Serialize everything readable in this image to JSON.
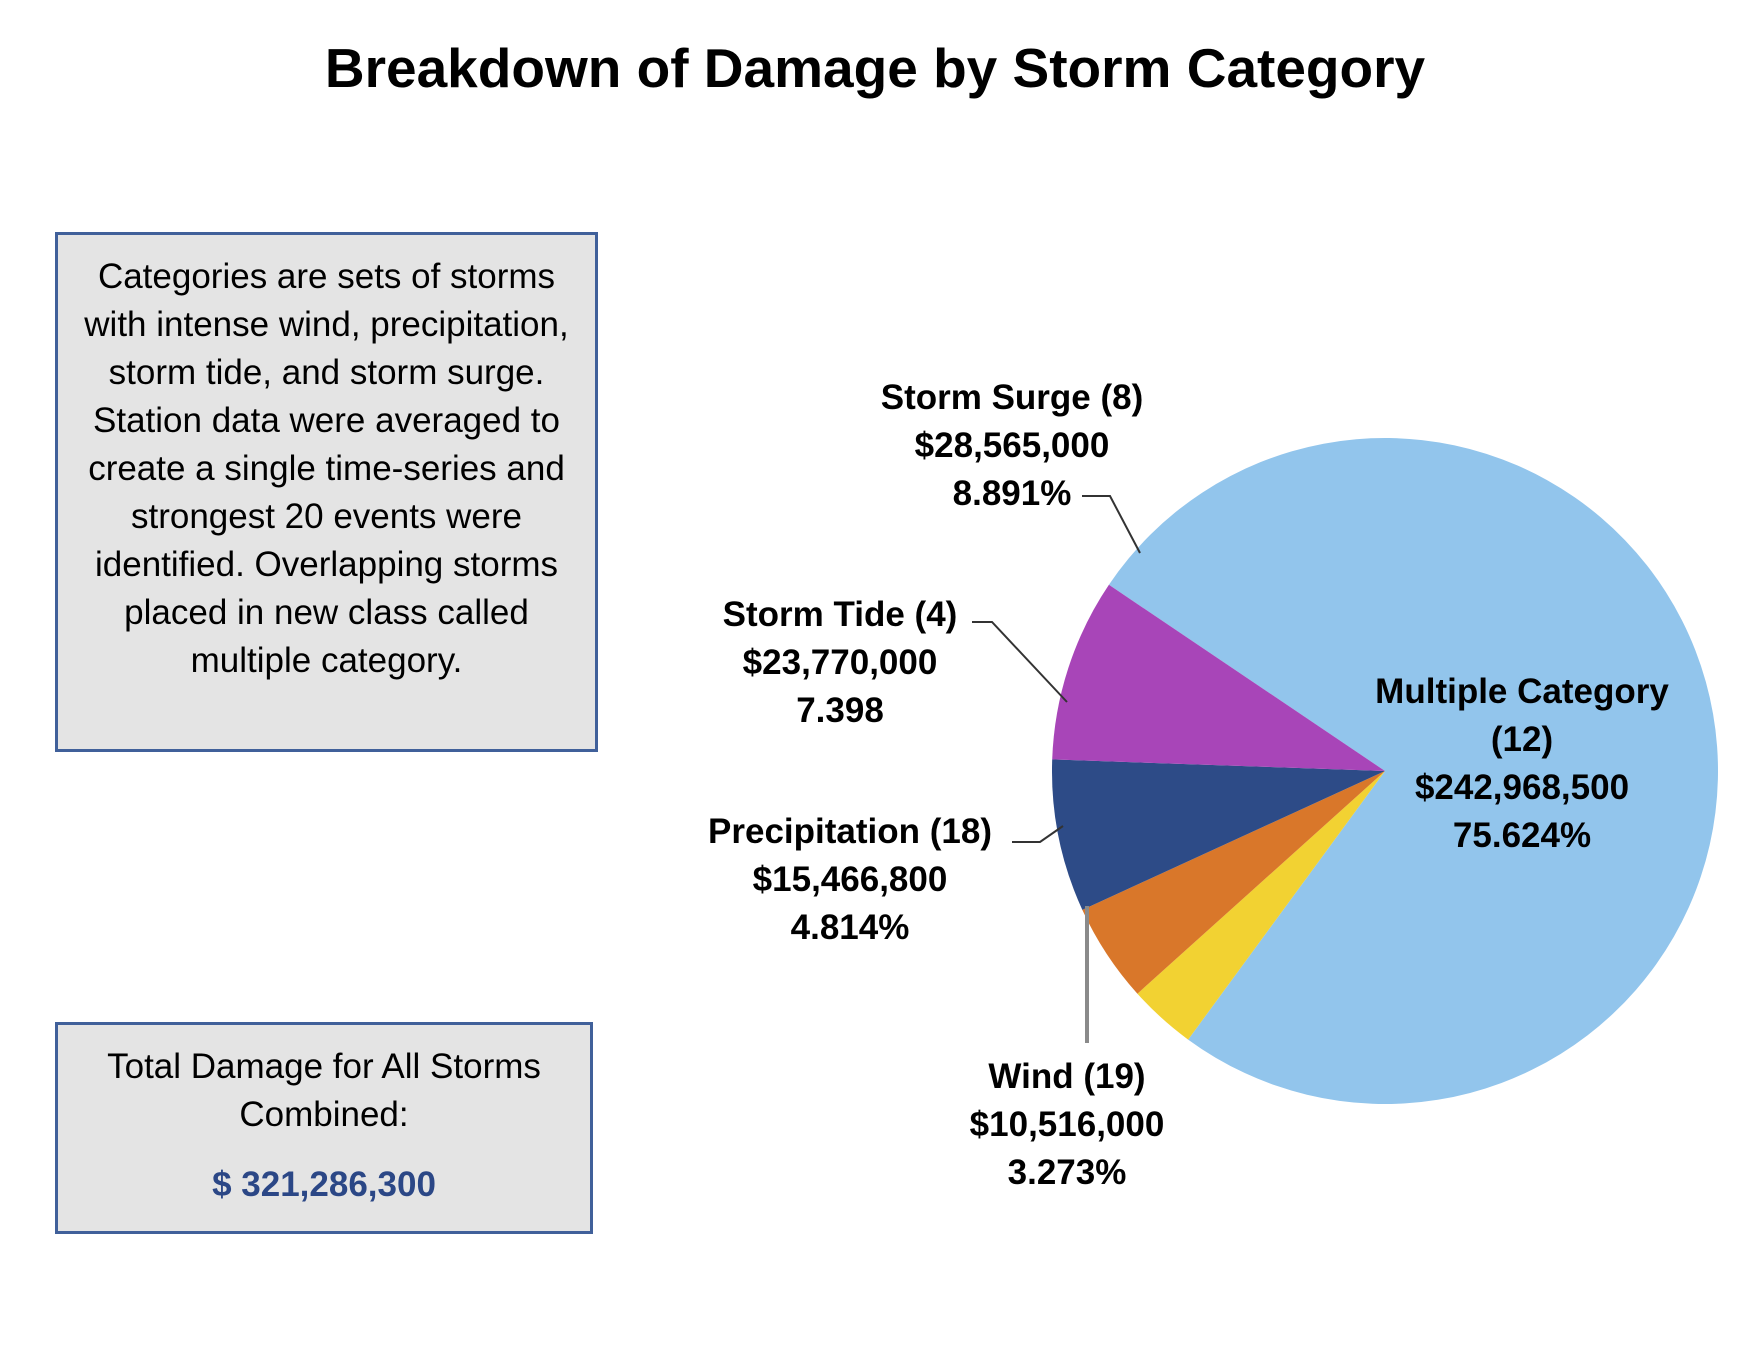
{
  "chart_data": {
    "type": "pie",
    "title": "Breakdown of Damage by Storm Category",
    "slices": [
      {
        "label": "Multiple Category",
        "count": "(12)",
        "value": 242968500,
        "value_text": "$242,968,500",
        "percent": 75.624,
        "percent_text": "75.624%",
        "color": "#92c5ec"
      },
      {
        "label": "Wind",
        "count": "(19)",
        "value": 10516000,
        "value_text": "$10,516,000",
        "percent": 3.273,
        "percent_text": "3.273%",
        "color": "#f2d232"
      },
      {
        "label": "Precipitation",
        "count": "(18)",
        "value": 15466800,
        "value_text": "$15,466,800",
        "percent": 4.814,
        "percent_text": "4.814%",
        "color": "#d9772a"
      },
      {
        "label": "Storm Tide",
        "count": "(4)",
        "value": 23770000,
        "value_text": "$23,770,000",
        "percent": 7.398,
        "percent_text": "7.398",
        "color": "#2d4b87"
      },
      {
        "label": "Storm Surge",
        "count": "(8)",
        "value": 28565000,
        "value_text": "$28,565,000",
        "percent": 8.891,
        "percent_text": "8.891%",
        "color": "#a845b8"
      }
    ],
    "legend": "none"
  },
  "description": {
    "text": "Categories are sets of storms with intense wind, precipitation, storm tide, and storm surge. Station data were averaged to create a single time-series and strongest 20 events were identified. Overlapping storms placed in new class called multiple category."
  },
  "total": {
    "label": "Total Damage for All Storms Combined:",
    "value": "$ 321,286,300"
  },
  "colors": {
    "box_border": "#40609a",
    "box_fill": "#e4e4e4",
    "total_value": "#2b4786"
  }
}
